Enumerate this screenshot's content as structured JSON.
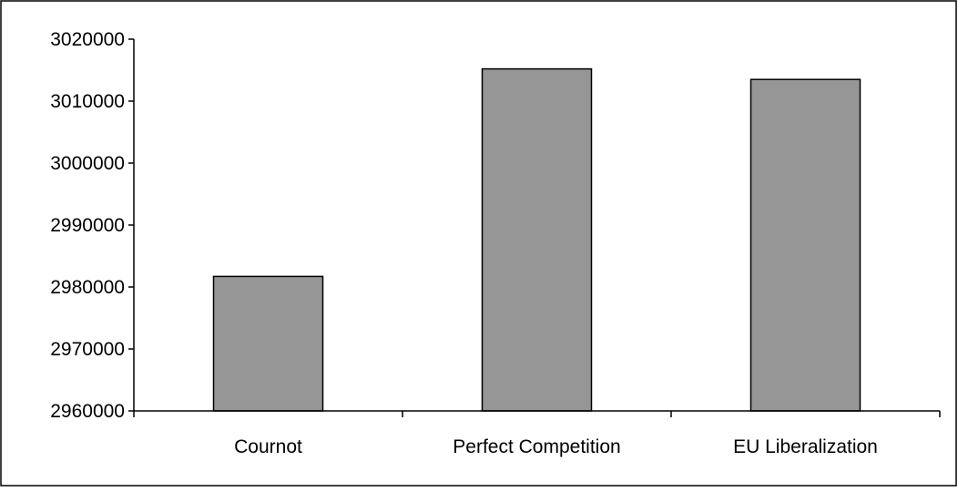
{
  "chart_data": {
    "type": "bar",
    "title": "",
    "xlabel": "",
    "ylabel": "",
    "categories": [
      "Cournot",
      "Perfect Competition",
      "EU Liberalization"
    ],
    "values": [
      2981700,
      3015200,
      3013500
    ],
    "ylim": [
      2960000,
      3020000
    ],
    "yticks": [
      "2960000",
      "2970000",
      "2980000",
      "2990000",
      "3000000",
      "3010000",
      "3020000"
    ],
    "ytick_values": [
      2960000,
      2970000,
      2980000,
      2990000,
      3000000,
      3010000,
      3020000
    ],
    "grid": false,
    "legend": "none",
    "colors": {
      "bar_fill": "#969696",
      "bar_stroke": "#000000",
      "axis": "#000000",
      "frame": "#000000",
      "background": "#ffffff"
    }
  }
}
